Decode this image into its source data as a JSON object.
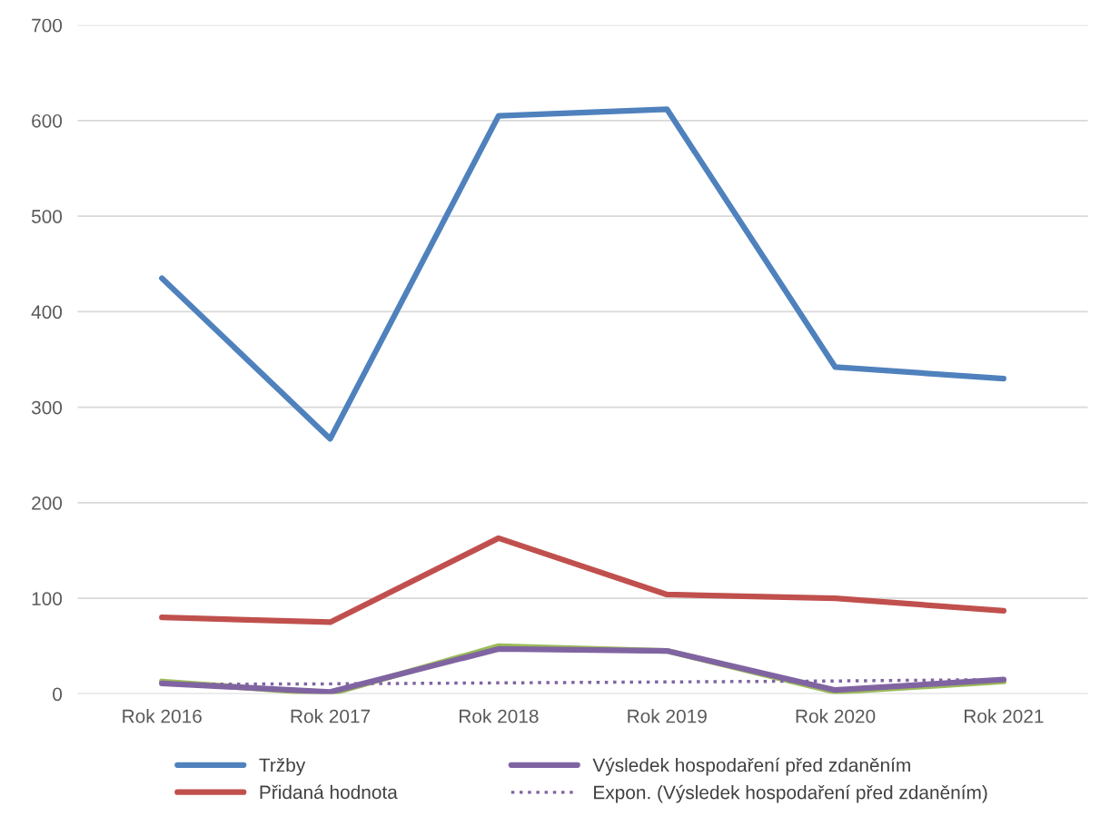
{
  "chart_data": {
    "type": "line",
    "categories": [
      "Rok 2016",
      "Rok 2017",
      "Rok 2018",
      "Rok 2019",
      "Rok 2020",
      "Rok 2021"
    ],
    "series": [
      {
        "name": "Tržby",
        "color": "#4f81bd",
        "values": [
          435,
          267,
          605,
          612,
          342,
          330
        ]
      },
      {
        "name": "Přidaná hodnota",
        "color": "#c0504d",
        "values": [
          80,
          75,
          163,
          104,
          100,
          87
        ]
      },
      {
        "color": "#9bbb59",
        "values": [
          13,
          0,
          50,
          45,
          2,
          13
        ]
      },
      {
        "name": "Výsledek hospodaření před zdaněním",
        "color": "#8064a2",
        "values": [
          11,
          2,
          47,
          45,
          4,
          15
        ]
      },
      {
        "name": "Expon. (Výsledek hospodaření před zdaněním)",
        "color": "#8064a2",
        "line_style": "dotted",
        "values": [
          10,
          10.5,
          11.5,
          12.5,
          13.5,
          15
        ]
      }
    ],
    "ylim": [
      0,
      700
    ],
    "yticks": [
      0,
      100,
      200,
      300,
      400,
      500,
      600,
      700
    ],
    "grid": "y",
    "legend": "bottom",
    "marker": "none",
    "line_style": "solid"
  }
}
